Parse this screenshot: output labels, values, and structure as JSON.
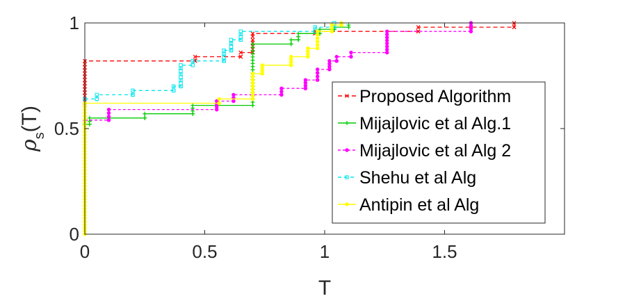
{
  "chart_data": {
    "type": "line",
    "title": "",
    "xlabel": "T",
    "ylabel": "ρs(T)",
    "xlim": [
      0,
      2
    ],
    "ylim": [
      0,
      1
    ],
    "xticks": [
      0,
      0.5,
      1,
      1.5
    ],
    "xtick_labels": [
      "0",
      "0.5",
      "1",
      "1.5"
    ],
    "yticks": [
      0,
      0.5,
      1
    ],
    "ytick_labels": [
      "0",
      "0.5",
      "1"
    ],
    "grid": false,
    "legend_position": "right",
    "series": [
      {
        "name": "Proposed Algorithm",
        "color": "#ff0000",
        "dash": "6,4",
        "marker": "x",
        "points": [
          [
            0,
            0.61
          ],
          [
            0,
            0.82
          ],
          [
            0.46,
            0.82
          ],
          [
            0.46,
            0.84
          ],
          [
            0.65,
            0.84
          ],
          [
            0.65,
            0.86
          ],
          [
            0.7,
            0.86
          ],
          [
            0.7,
            0.95
          ],
          [
            0.96,
            0.95
          ],
          [
            0.96,
            0.96
          ],
          [
            1.39,
            0.96
          ],
          [
            1.39,
            0.98
          ],
          [
            1.79,
            0.98
          ],
          [
            1.79,
            1.0
          ]
        ]
      },
      {
        "name": "Mijajlovic et al Alg.1",
        "color": "#00cc00",
        "dash": "",
        "marker": "+",
        "points": [
          [
            0,
            0.52
          ],
          [
            0.02,
            0.52
          ],
          [
            0.02,
            0.55
          ],
          [
            0.25,
            0.55
          ],
          [
            0.25,
            0.57
          ],
          [
            0.45,
            0.57
          ],
          [
            0.45,
            0.61
          ],
          [
            0.7,
            0.61
          ],
          [
            0.7,
            0.9
          ],
          [
            0.86,
            0.9
          ],
          [
            0.86,
            0.92
          ],
          [
            0.89,
            0.92
          ],
          [
            0.89,
            0.95
          ],
          [
            0.98,
            0.95
          ],
          [
            0.98,
            0.97
          ],
          [
            1.04,
            0.97
          ],
          [
            1.04,
            0.98
          ],
          [
            1.1,
            0.98
          ],
          [
            1.1,
            0.99
          ]
        ]
      },
      {
        "name": "Mijajlovic et al Alg 2",
        "color": "#ff00ff",
        "dash": "4,3",
        "marker": "o",
        "points": [
          [
            0,
            0.54
          ],
          [
            0.1,
            0.54
          ],
          [
            0.1,
            0.59
          ],
          [
            0.55,
            0.59
          ],
          [
            0.55,
            0.63
          ],
          [
            0.62,
            0.63
          ],
          [
            0.62,
            0.66
          ],
          [
            0.82,
            0.66
          ],
          [
            0.82,
            0.69
          ],
          [
            0.92,
            0.69
          ],
          [
            0.92,
            0.73
          ],
          [
            0.97,
            0.73
          ],
          [
            0.97,
            0.78
          ],
          [
            1.02,
            0.78
          ],
          [
            1.02,
            0.82
          ],
          [
            1.05,
            0.82
          ],
          [
            1.05,
            0.84
          ],
          [
            1.11,
            0.84
          ],
          [
            1.11,
            0.86
          ],
          [
            1.26,
            0.86
          ],
          [
            1.26,
            0.96
          ],
          [
            1.61,
            0.96
          ],
          [
            1.61,
            1.0
          ]
        ]
      },
      {
        "name": "Shehu et al Alg",
        "color": "#00e5ee",
        "dash": "5,4",
        "marker": "s",
        "points": [
          [
            0,
            0.64
          ],
          [
            0.05,
            0.64
          ],
          [
            0.05,
            0.66
          ],
          [
            0.2,
            0.66
          ],
          [
            0.2,
            0.68
          ],
          [
            0.37,
            0.68
          ],
          [
            0.37,
            0.7
          ],
          [
            0.4,
            0.7
          ],
          [
            0.4,
            0.8
          ],
          [
            0.45,
            0.8
          ],
          [
            0.45,
            0.82
          ],
          [
            0.58,
            0.82
          ],
          [
            0.58,
            0.87
          ],
          [
            0.61,
            0.87
          ],
          [
            0.61,
            0.92
          ],
          [
            0.65,
            0.92
          ],
          [
            0.65,
            0.96
          ],
          [
            0.96,
            0.96
          ],
          [
            0.96,
            0.98
          ],
          [
            1.04,
            0.98
          ],
          [
            1.04,
            1.0
          ]
        ]
      },
      {
        "name": "Antipin et al Alg",
        "color": "#ffff00",
        "dash": "",
        "marker": "o",
        "points": [
          [
            0,
            0.0
          ],
          [
            0,
            0.62
          ],
          [
            0.56,
            0.62
          ],
          [
            0.56,
            0.64
          ],
          [
            0.7,
            0.64
          ],
          [
            0.7,
            0.76
          ],
          [
            0.74,
            0.76
          ],
          [
            0.74,
            0.8
          ],
          [
            0.86,
            0.8
          ],
          [
            0.86,
            0.84
          ],
          [
            0.93,
            0.84
          ],
          [
            0.93,
            0.88
          ],
          [
            0.97,
            0.88
          ],
          [
            0.97,
            0.96
          ],
          [
            1.03,
            0.96
          ],
          [
            1.03,
            0.99
          ],
          [
            1.07,
            0.99
          ],
          [
            1.07,
            1.0
          ]
        ]
      }
    ]
  }
}
